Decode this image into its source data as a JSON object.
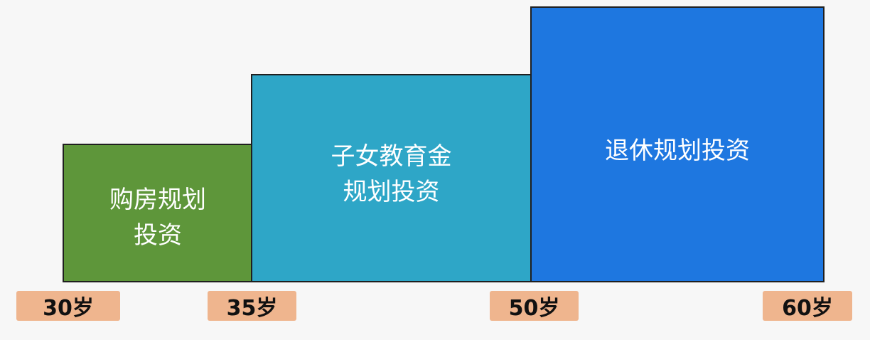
{
  "colors": {
    "background": "#f7f7f7",
    "housing_fill": "#5e963a",
    "education_fill": "#2ea6c7",
    "retirement_fill": "#1e77e0",
    "age_tag_fill": "#efb58e"
  },
  "stages": [
    {
      "id": "housing",
      "label": "购房规划\n投资",
      "start_age": "30岁",
      "end_age": "35岁"
    },
    {
      "id": "education",
      "label": "子女教育金\n规划投资",
      "start_age": "35岁",
      "end_age": "50岁"
    },
    {
      "id": "retirement",
      "label": "退休规划投资",
      "start_age": "50岁",
      "end_age": "60岁"
    }
  ],
  "age_markers": [
    "30岁",
    "35岁",
    "50岁",
    "60岁"
  ]
}
